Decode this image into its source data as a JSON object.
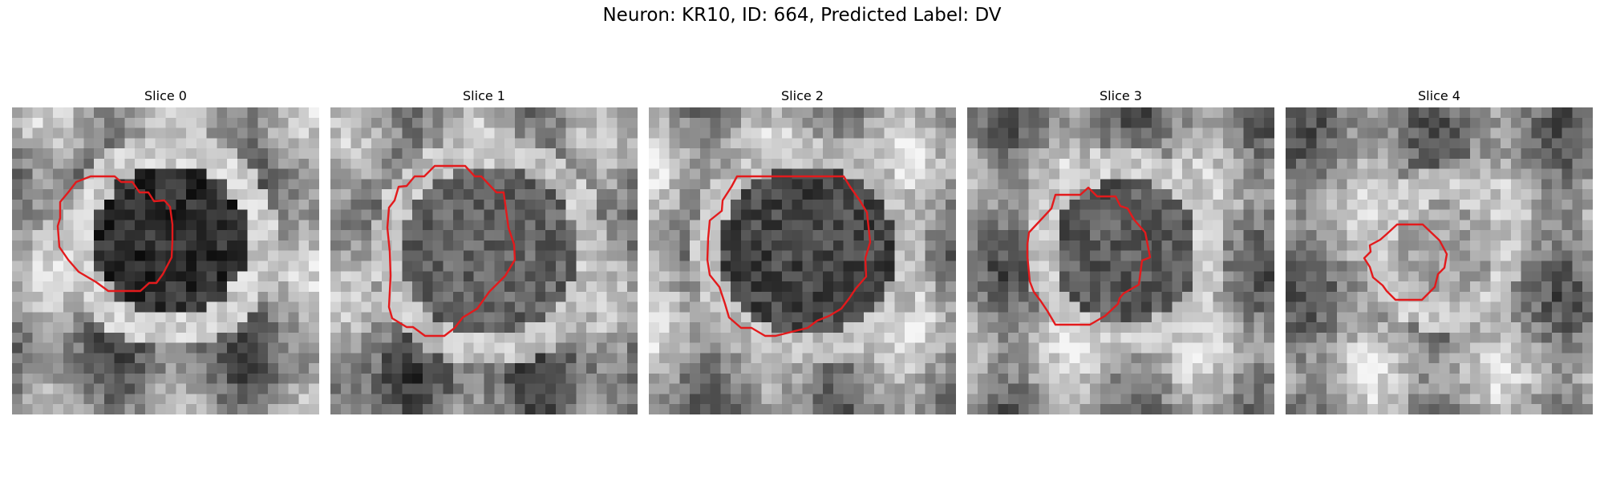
{
  "figure": {
    "title": "Neuron: KR10, ID: 664, Predicted Label: DV"
  },
  "outline_color": "#e31a1c",
  "panels": [
    {
      "title": "Slice 0"
    },
    {
      "title": "Slice 1"
    },
    {
      "title": "Slice 2"
    },
    {
      "title": "Slice 3"
    },
    {
      "title": "Slice 4"
    }
  ]
}
